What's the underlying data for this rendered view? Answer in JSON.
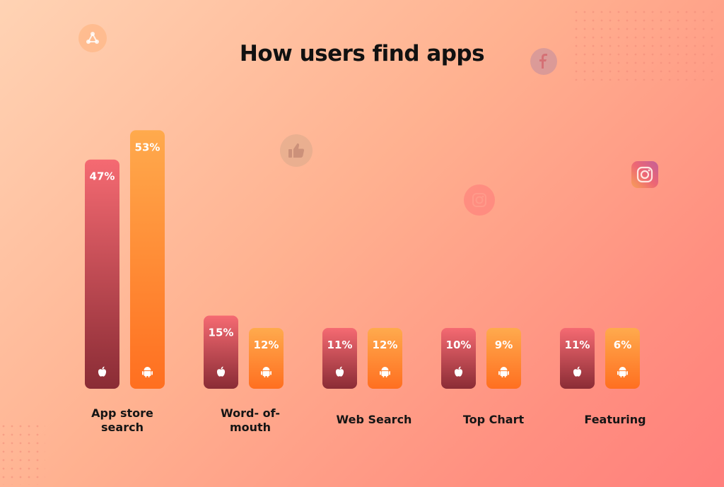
{
  "chart_data": {
    "type": "bar",
    "title": "How users find apps",
    "categories": [
      "App store search",
      "Word- of- mouth",
      "Web Search",
      "Top Chart",
      "Featuring"
    ],
    "category_label_lines": [
      [
        "App store",
        "search"
      ],
      [
        "Word- of-",
        "mouth"
      ],
      [
        "Web Search"
      ],
      [
        "Top Chart"
      ],
      [
        "Featuring"
      ]
    ],
    "series": [
      {
        "icon": "apple-icon",
        "values": [
          47,
          15,
          11,
          10,
          11
        ],
        "labels": [
          "47%",
          "15%",
          "11%",
          "10%",
          "11%"
        ],
        "color_top": "#f56a72",
        "color_bottom": "#8a2c35"
      },
      {
        "icon": "android-icon",
        "values": [
          53,
          12,
          12,
          9,
          6
        ],
        "labels": [
          "53%",
          "12%",
          "12%",
          "9%",
          "6%"
        ],
        "color_top": "#ffaa4d",
        "color_bottom": "#ff6f20"
      }
    ],
    "unit": "%",
    "grid": false,
    "legend": "none"
  },
  "decorations": [
    "share-icon",
    "facebook-icon",
    "thumbs-up-icon",
    "instagram-icon",
    "instagram-icon"
  ]
}
